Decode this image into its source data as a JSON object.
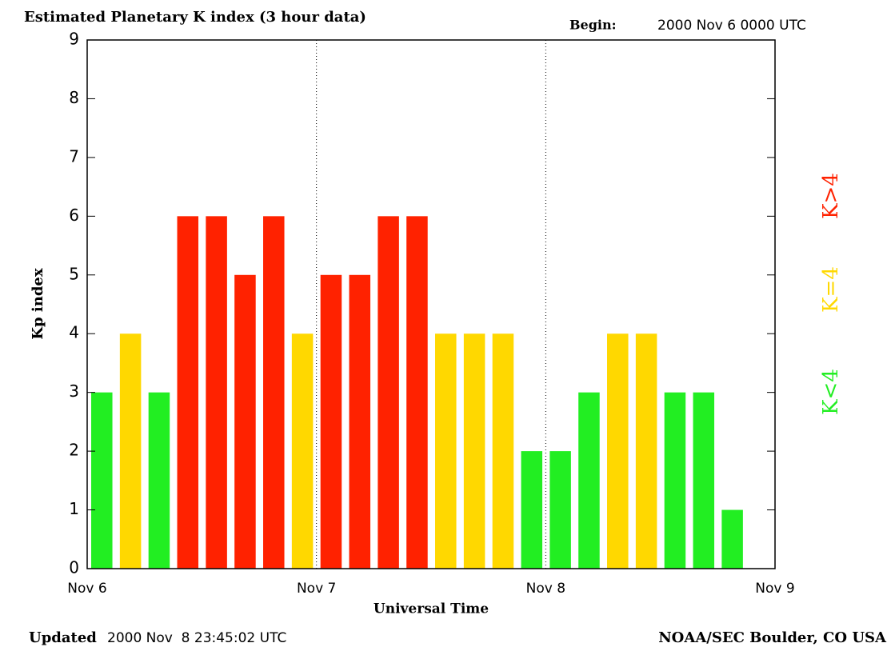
{
  "chart_data": {
    "type": "bar",
    "title": "Estimated Planetary K index (3 hour data)",
    "begin_label": "Begin:",
    "begin_value": "2000 Nov 6 0000 UTC",
    "y_label": "Kp index",
    "x_label": "Universal Time",
    "updated_label": "Updated",
    "updated_value": "2000 Nov  8 23:45:02 UTC",
    "credit": "NOAA/SEC Boulder, CO USA",
    "categories": [
      null,
      null,
      null,
      null,
      null,
      null,
      null,
      null,
      null,
      null,
      null,
      null,
      null,
      null,
      null,
      null,
      null,
      null,
      null,
      null,
      null,
      null,
      null,
      null
    ],
    "values": [
      3,
      4,
      3,
      6,
      6,
      5,
      6,
      4,
      5,
      5,
      6,
      6,
      4,
      4,
      4,
      2,
      2,
      3,
      4,
      4,
      3,
      3,
      1,
      null
    ],
    "colors": [
      "#22ee22",
      "#ffd800",
      "#22ee22",
      "#ff2200",
      "#ff2200",
      "#ff2200",
      "#ff2200",
      "#ffd800",
      "#ff2200",
      "#ff2200",
      "#ff2200",
      "#ff2200",
      "#ffd800",
      "#ffd800",
      "#ffd800",
      "#22ee22",
      "#22ee22",
      "#22ee22",
      "#ffd800",
      "#ffd800",
      "#22ee22",
      "#22ee22",
      "#22ee22",
      null
    ],
    "legend": [
      {
        "label": "K<4",
        "color": "#22ee22"
      },
      {
        "label": "K=4",
        "color": "#ffd800"
      },
      {
        "label": "K>4",
        "color": "#ff2200"
      }
    ],
    "xlim": [
      0,
      24
    ],
    "xticks": [
      {
        "value": 0,
        "label": "Nov 6"
      },
      {
        "value": 8,
        "label": "Nov 7"
      },
      {
        "value": 16,
        "label": "Nov 8"
      },
      {
        "value": 24,
        "label": "Nov 9"
      }
    ],
    "ylim": [
      0,
      9
    ],
    "yticks": [
      0,
      1,
      2,
      3,
      4,
      5,
      6,
      7,
      8,
      9
    ]
  }
}
